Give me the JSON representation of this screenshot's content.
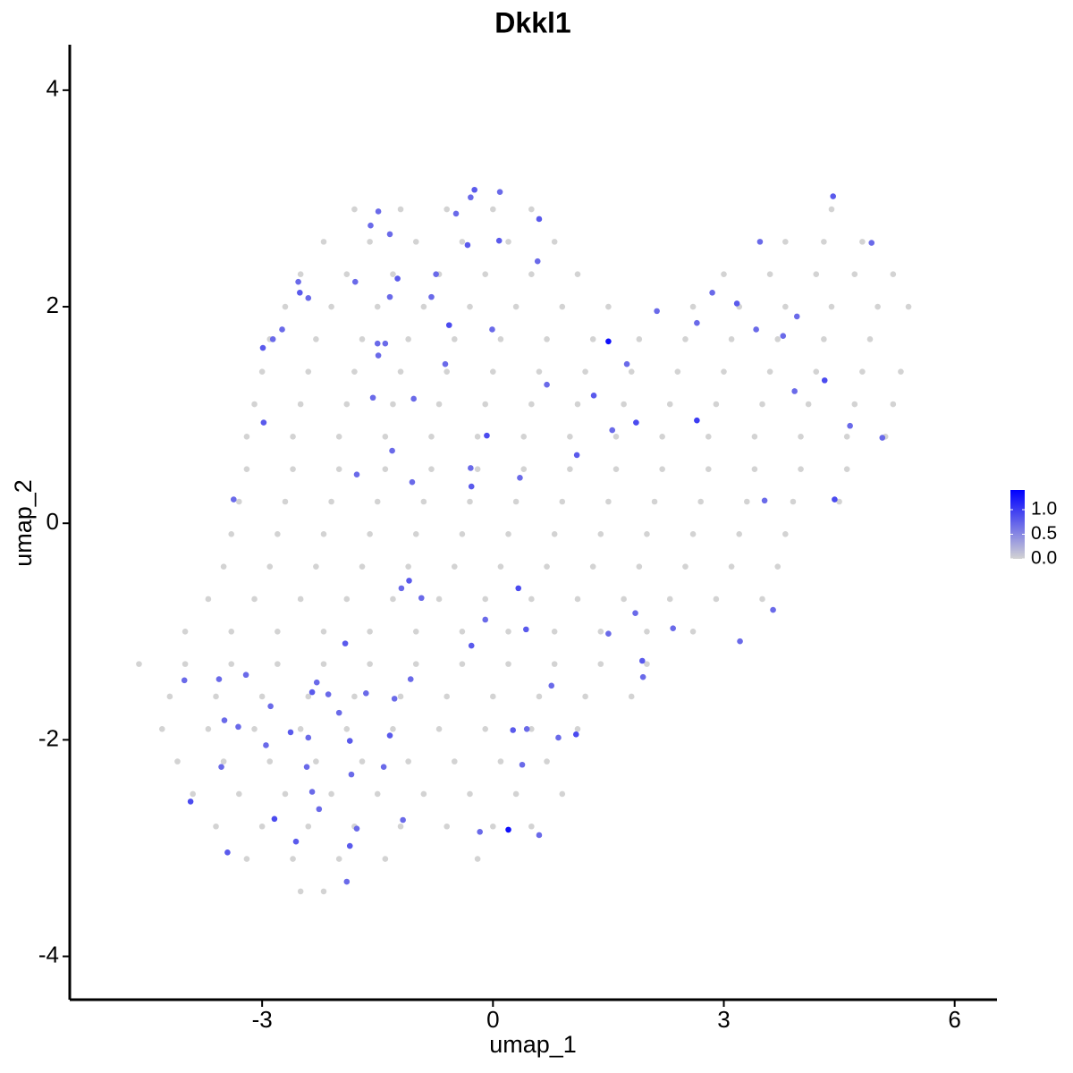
{
  "chart_data": {
    "type": "scatter",
    "title": "Dkkl1",
    "x_label": "umap_1",
    "y_label": "umap_2",
    "xlim": [
      -5.5,
      6.55
    ],
    "ylim": [
      -4.4,
      4.42
    ],
    "xticks": [
      -3,
      0,
      3,
      6
    ],
    "yticks": [
      -4,
      -2,
      0,
      2,
      4
    ],
    "color_low": "#d3d3d3",
    "color_high": "#0000ff",
    "colorbar_lim": [
      0,
      1.4
    ],
    "colorbar_ticks": [
      {
        "value": 0,
        "label": "0.0"
      },
      0.5,
      {
        "value": 1,
        "label": "1.0"
      }
    ],
    "x": [
      -1.8,
      -1.2,
      -0.6,
      0.0,
      0.5,
      4.4,
      -2.2,
      -1.6,
      -1.0,
      -0.4,
      0.2,
      0.8,
      3.8,
      4.3,
      4.8,
      -2.5,
      -1.9,
      -1.3,
      -0.7,
      -0.1,
      0.5,
      1.1,
      3.0,
      3.6,
      4.2,
      4.7,
      5.2,
      -2.7,
      -2.1,
      -1.5,
      -0.9,
      -0.3,
      0.3,
      0.9,
      1.5,
      2.6,
      3.2,
      3.8,
      4.4,
      5.0,
      5.4,
      -2.9,
      -2.3,
      -1.7,
      -1.1,
      -0.5,
      0.1,
      0.7,
      1.3,
      1.9,
      2.5,
      3.1,
      3.7,
      4.3,
      4.9,
      -3.0,
      -2.4,
      -1.8,
      -1.2,
      -0.6,
      0.0,
      0.6,
      1.2,
      1.8,
      2.4,
      3.0,
      3.6,
      4.2,
      4.8,
      5.3,
      -3.1,
      -2.5,
      -1.9,
      -1.3,
      -0.7,
      -0.1,
      0.5,
      1.1,
      1.7,
      2.3,
      2.9,
      3.5,
      4.1,
      4.7,
      5.2,
      -3.2,
      -2.6,
      -2.0,
      -1.4,
      -0.8,
      -0.2,
      0.4,
      1.0,
      1.6,
      2.2,
      2.8,
      3.4,
      4.0,
      4.6,
      5.1,
      -3.2,
      -2.6,
      -2.0,
      -1.4,
      -0.8,
      -0.2,
      0.4,
      1.0,
      1.6,
      2.2,
      2.8,
      3.4,
      4.0,
      4.6,
      -3.3,
      -2.7,
      -2.1,
      -1.5,
      -0.9,
      -0.3,
      0.3,
      0.9,
      1.5,
      2.1,
      2.7,
      3.3,
      3.9,
      4.5,
      -3.4,
      -2.8,
      -2.2,
      -1.6,
      -1.0,
      -0.4,
      0.2,
      0.8,
      1.4,
      2.0,
      2.6,
      3.2,
      3.8,
      -3.5,
      -2.9,
      -2.3,
      -1.7,
      -1.1,
      -0.5,
      0.1,
      0.7,
      1.3,
      1.9,
      2.5,
      3.1,
      3.7,
      -3.7,
      -3.1,
      -2.5,
      -1.9,
      -1.3,
      -0.7,
      -0.1,
      0.5,
      1.1,
      1.7,
      2.3,
      2.9,
      3.5,
      -4.0,
      -3.4,
      -2.8,
      -2.2,
      -1.6,
      -1.0,
      -0.4,
      0.2,
      0.8,
      1.4,
      2.0,
      2.6,
      -4.6,
      -4.0,
      -3.4,
      -2.8,
      -2.2,
      -1.6,
      -1.0,
      -0.4,
      0.2,
      0.8,
      1.4,
      2.0,
      -4.2,
      -3.6,
      -3.0,
      -2.4,
      -1.8,
      -1.2,
      -0.6,
      0.0,
      0.6,
      1.2,
      1.8,
      -4.3,
      -3.7,
      -3.1,
      -2.5,
      -1.9,
      -1.3,
      -0.7,
      -0.1,
      0.5,
      1.1,
      -4.1,
      -3.5,
      -2.9,
      -2.3,
      -1.7,
      -1.1,
      -0.5,
      0.1,
      0.7,
      -3.9,
      -3.3,
      -2.7,
      -2.1,
      -1.5,
      -0.9,
      -0.3,
      0.3,
      0.9,
      -3.6,
      -3.0,
      -2.4,
      -1.8,
      -1.2,
      -0.6,
      0.0,
      0.5,
      -3.2,
      -2.6,
      -2.0,
      -1.4,
      -0.2,
      -2.5,
      -2.2,
      -0.29,
      -0.24,
      0.09,
      0.6,
      -0.48,
      -1.49,
      -1.59,
      -1.34,
      -0.33,
      0.08,
      0.58,
      -0.74,
      -1.24,
      -1.79,
      -2.53,
      -2.51,
      -2.4,
      -1.34,
      -0.8,
      -0.57,
      -0.01,
      -2.74,
      -2.86,
      -2.99,
      -1.5,
      -1.4,
      -1.49,
      -0.62,
      -1.56,
      -1.03,
      0.7,
      1.5,
      1.74,
      2.13,
      2.65,
      2.85,
      3.17,
      3.47,
      3.42,
      3.77,
      3.95,
      3.92,
      4.31,
      4.42,
      4.92,
      5.06,
      4.64,
      4.44,
      3.53,
      2.65,
      1.86,
      1.55,
      1.31,
      1.09,
      -0.08,
      -0.29,
      -0.28,
      0.35,
      -1.31,
      -1.05,
      -1.77,
      -2.98,
      -3.37,
      -1.09,
      -1.19,
      -0.93,
      0.33,
      -0.1,
      0.43,
      -0.28,
      1.5,
      1.85,
      2.34,
      3.64,
      3.21,
      1.94,
      1.95,
      0.76,
      1.08,
      0.85,
      0.44,
      0.26,
      0.38,
      0.2,
      -0.17,
      0.6,
      -1.17,
      -1.42,
      -1.34,
      -1.28,
      -1.65,
      -1.92,
      -1.07,
      -2.29,
      -2.35,
      -2.14,
      -2.0,
      -2.4,
      -2.63,
      -2.89,
      -2.95,
      -3.31,
      -3.49,
      -3.56,
      -3.21,
      -4.01,
      -1.86,
      -1.84,
      -2.42,
      -2.35,
      -2.26,
      -2.84,
      -3.53,
      -3.93,
      -2.56,
      -3.45,
      -1.86,
      -1.77,
      -1.9
    ],
    "y": [
      2.9,
      2.9,
      2.9,
      2.9,
      2.9,
      2.9,
      2.6,
      2.6,
      2.6,
      2.6,
      2.6,
      2.6,
      2.6,
      2.6,
      2.6,
      2.3,
      2.3,
      2.3,
      2.3,
      2.3,
      2.3,
      2.3,
      2.3,
      2.3,
      2.3,
      2.3,
      2.3,
      2.0,
      2.0,
      2.0,
      2.0,
      2.0,
      2.0,
      2.0,
      2.0,
      2.0,
      2.0,
      2.0,
      2.0,
      2.0,
      2.0,
      1.7,
      1.7,
      1.7,
      1.7,
      1.7,
      1.7,
      1.7,
      1.7,
      1.7,
      1.7,
      1.7,
      1.7,
      1.7,
      1.7,
      1.4,
      1.4,
      1.4,
      1.4,
      1.4,
      1.4,
      1.4,
      1.4,
      1.4,
      1.4,
      1.4,
      1.4,
      1.4,
      1.4,
      1.4,
      1.1,
      1.1,
      1.1,
      1.1,
      1.1,
      1.1,
      1.1,
      1.1,
      1.1,
      1.1,
      1.1,
      1.1,
      1.1,
      1.1,
      1.1,
      0.8,
      0.8,
      0.8,
      0.8,
      0.8,
      0.8,
      0.8,
      0.8,
      0.8,
      0.8,
      0.8,
      0.8,
      0.8,
      0.8,
      0.8,
      0.5,
      0.5,
      0.5,
      0.5,
      0.5,
      0.5,
      0.5,
      0.5,
      0.5,
      0.5,
      0.5,
      0.5,
      0.5,
      0.5,
      0.2,
      0.2,
      0.2,
      0.2,
      0.2,
      0.2,
      0.2,
      0.2,
      0.2,
      0.2,
      0.2,
      0.2,
      0.2,
      0.2,
      -0.1,
      -0.1,
      -0.1,
      -0.1,
      -0.1,
      -0.1,
      -0.1,
      -0.1,
      -0.1,
      -0.1,
      -0.1,
      -0.1,
      -0.1,
      -0.4,
      -0.4,
      -0.4,
      -0.4,
      -0.4,
      -0.4,
      -0.4,
      -0.4,
      -0.4,
      -0.4,
      -0.4,
      -0.4,
      -0.4,
      -0.7,
      -0.7,
      -0.7,
      -0.7,
      -0.7,
      -0.7,
      -0.7,
      -0.7,
      -0.7,
      -0.7,
      -0.7,
      -0.7,
      -0.7,
      -1.0,
      -1.0,
      -1.0,
      -1.0,
      -1.0,
      -1.0,
      -1.0,
      -1.0,
      -1.0,
      -1.0,
      -1.0,
      -1.0,
      -1.3,
      -1.3,
      -1.3,
      -1.3,
      -1.3,
      -1.3,
      -1.3,
      -1.3,
      -1.3,
      -1.3,
      -1.3,
      -1.3,
      -1.6,
      -1.6,
      -1.6,
      -1.6,
      -1.6,
      -1.6,
      -1.6,
      -1.6,
      -1.6,
      -1.6,
      -1.6,
      -1.9,
      -1.9,
      -1.9,
      -1.9,
      -1.9,
      -1.9,
      -1.9,
      -1.9,
      -1.9,
      -1.9,
      -2.2,
      -2.2,
      -2.2,
      -2.2,
      -2.2,
      -2.2,
      -2.2,
      -2.2,
      -2.2,
      -2.5,
      -2.5,
      -2.5,
      -2.5,
      -2.5,
      -2.5,
      -2.5,
      -2.5,
      -2.5,
      -2.8,
      -2.8,
      -2.8,
      -2.8,
      -2.8,
      -2.8,
      -2.8,
      -2.8,
      -3.1,
      -3.1,
      -3.1,
      -3.1,
      -3.1,
      -3.4,
      -3.4,
      3.01,
      3.08,
      3.06,
      2.81,
      2.86,
      2.88,
      2.75,
      2.67,
      2.57,
      2.61,
      2.42,
      2.3,
      2.26,
      2.23,
      2.23,
      2.13,
      2.08,
      2.09,
      2.09,
      1.83,
      1.79,
      1.79,
      1.7,
      1.62,
      1.66,
      1.66,
      1.55,
      1.47,
      1.16,
      1.15,
      1.28,
      1.68,
      1.47,
      1.96,
      1.85,
      2.13,
      2.03,
      2.6,
      1.79,
      1.73,
      1.91,
      1.22,
      1.32,
      3.02,
      2.59,
      0.79,
      0.9,
      0.22,
      0.21,
      0.95,
      0.93,
      0.86,
      1.18,
      0.63,
      0.81,
      0.51,
      0.34,
      0.42,
      0.67,
      0.38,
      0.45,
      0.93,
      0.22,
      -0.53,
      -0.6,
      -0.69,
      -0.6,
      -0.89,
      -0.98,
      -1.13,
      -1.02,
      -0.83,
      -0.97,
      -0.8,
      -1.09,
      -1.27,
      -1.42,
      -1.5,
      -1.95,
      -1.98,
      -1.9,
      -1.91,
      -2.23,
      -2.83,
      -2.85,
      -2.88,
      -2.74,
      -2.25,
      -1.96,
      -1.62,
      -1.57,
      -1.11,
      -1.44,
      -1.47,
      -1.56,
      -1.58,
      -1.75,
      -1.98,
      -1.93,
      -1.69,
      -2.05,
      -1.88,
      -1.82,
      -1.44,
      -1.4,
      -1.45,
      -2.01,
      -2.32,
      -2.25,
      -2.48,
      -2.64,
      -2.73,
      -2.25,
      -2.57,
      -2.94,
      -3.04,
      -2.98,
      -2.82,
      -3.31
    ],
    "values": [
      0,
      0,
      0,
      0,
      0,
      0,
      0,
      0,
      0,
      0,
      0,
      0,
      0,
      0,
      0,
      0,
      0,
      0,
      0,
      0,
      0,
      0,
      0,
      0,
      0,
      0,
      0,
      0,
      0,
      0,
      0,
      0,
      0,
      0,
      0,
      0,
      0,
      0,
      0,
      0,
      0,
      0,
      0,
      0,
      0,
      0,
      0,
      0,
      0,
      0,
      0,
      0,
      0,
      0,
      0,
      0,
      0,
      0,
      0,
      0,
      0,
      0,
      0,
      0,
      0,
      0,
      0,
      0,
      0,
      0,
      0,
      0,
      0,
      0,
      0,
      0,
      0,
      0,
      0,
      0,
      0,
      0,
      0,
      0,
      0,
      0,
      0,
      0,
      0,
      0,
      0,
      0,
      0,
      0,
      0,
      0,
      0,
      0,
      0,
      0,
      0,
      0,
      0,
      0,
      0,
      0,
      0,
      0,
      0,
      0,
      0,
      0,
      0,
      0,
      0,
      0,
      0,
      0,
      0,
      0,
      0,
      0,
      0,
      0,
      0,
      0,
      0,
      0,
      0,
      0,
      0,
      0,
      0,
      0,
      0,
      0,
      0,
      0,
      0,
      0,
      0,
      0,
      0,
      0,
      0,
      0,
      0,
      0,
      0,
      0,
      0,
      0,
      0,
      0,
      0,
      0,
      0,
      0,
      0,
      0,
      0,
      0,
      0,
      0,
      0,
      0,
      0,
      0,
      0,
      0,
      0,
      0,
      0,
      0,
      0,
      0,
      0,
      0,
      0,
      0,
      0,
      0,
      0,
      0,
      0,
      0,
      0,
      0,
      0,
      0,
      0,
      0,
      0,
      0,
      0,
      0,
      0,
      0,
      0,
      0,
      0,
      0,
      0,
      0,
      0,
      0,
      0,
      0,
      0,
      0,
      0,
      0,
      0,
      0,
      0,
      0,
      0,
      0,
      0,
      0,
      0,
      0,
      0,
      0,
      0,
      0,
      0,
      0,
      0,
      0,
      0,
      0,
      0,
      0,
      0,
      0,
      0,
      0,
      0,
      0,
      0,
      0,
      0,
      0,
      0,
      0.7,
      0.8,
      0.7,
      0.8,
      0.7,
      0.7,
      0.7,
      0.7,
      0.8,
      0.8,
      0.7,
      0.7,
      0.8,
      0.7,
      0.7,
      0.8,
      0.7,
      0.7,
      0.7,
      0.9,
      0.7,
      0.7,
      0.7,
      0.8,
      0.7,
      0.7,
      0.7,
      0.7,
      0.7,
      0.7,
      0.7,
      1.3,
      0.7,
      0.7,
      0.7,
      0.7,
      0.8,
      0.7,
      0.7,
      0.7,
      0.7,
      0.7,
      0.9,
      0.8,
      0.7,
      0.7,
      0.7,
      0.9,
      0.7,
      1.0,
      0.9,
      0.7,
      0.8,
      0.8,
      0.9,
      0.7,
      0.8,
      0.7,
      0.7,
      0.7,
      0.7,
      0.8,
      0.7,
      0.8,
      0.7,
      0.7,
      0.9,
      0.7,
      0.8,
      0.8,
      0.7,
      0.7,
      0.7,
      0.7,
      0.7,
      0.8,
      0.7,
      0.7,
      0.9,
      0.7,
      0.7,
      0.8,
      0.7,
      1.3,
      0.7,
      0.7,
      0.7,
      0.7,
      0.8,
      0.7,
      0.7,
      0.8,
      0.7,
      0.7,
      0.8,
      0.7,
      0.7,
      0.7,
      0.8,
      0.7,
      0.7,
      0.7,
      0.7,
      0.7,
      0.7,
      0.7,
      0.8,
      0.7,
      0.7,
      0.7,
      0.7,
      0.9,
      0.7,
      0.9,
      0.8,
      0.8,
      0.8,
      0.7,
      0.7
    ]
  }
}
